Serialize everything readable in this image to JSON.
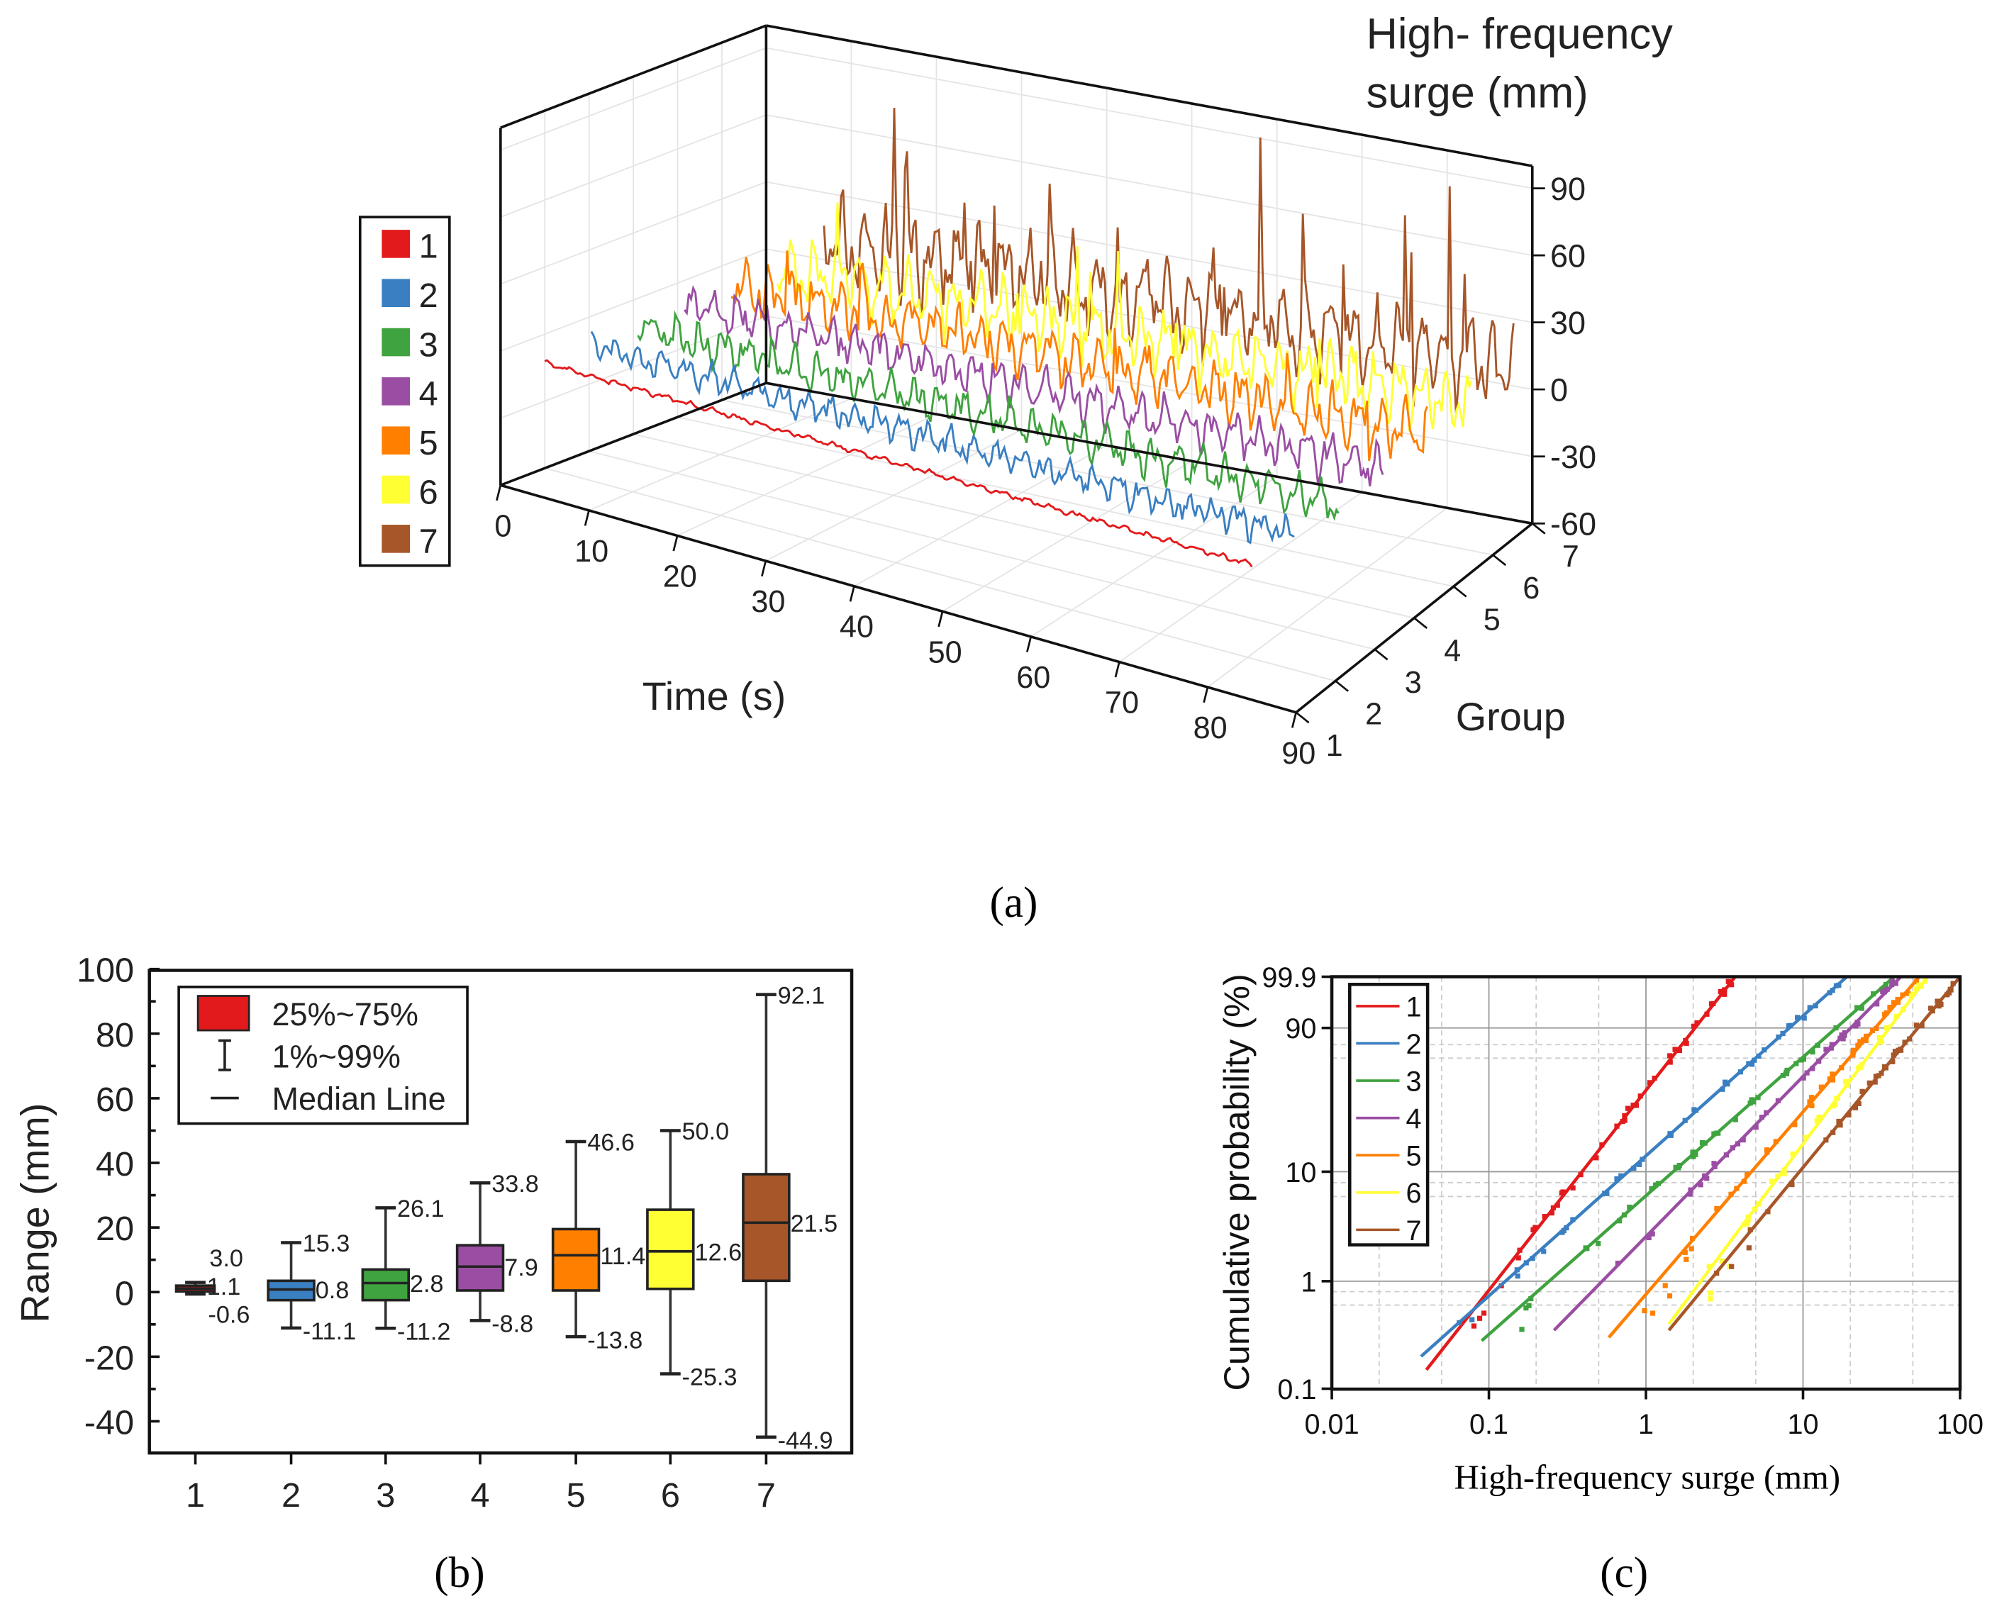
{
  "panel_labels": {
    "a": "(a)",
    "b": "(b)",
    "c": "(c)"
  },
  "colors": [
    "#e31a1c",
    "#3a7fc1",
    "#3fa33f",
    "#9a4ea3",
    "#ff7f00",
    "#ffff33",
    "#a65628"
  ],
  "chart_data": [
    {
      "type": "line",
      "subtype": "3d-waterfall",
      "title_line1": "High- frequency",
      "title_line2": "surge (mm)",
      "xlabel": "Time (s)",
      "ylabel": "Group",
      "x_ticks": [
        0,
        10,
        20,
        30,
        40,
        50,
        60,
        70,
        80,
        90
      ],
      "group_ticks": [
        1,
        2,
        3,
        4,
        5,
        6,
        7
      ],
      "z_ticks": [
        90,
        60,
        30,
        0,
        -30,
        -60
      ],
      "xlim": [
        0,
        90
      ],
      "zlim": [
        -60,
        90
      ],
      "legend": [
        "1",
        "2",
        "3",
        "4",
        "5",
        "6",
        "7"
      ],
      "legend_placement": "left"
    },
    {
      "type": "box",
      "ylabel": "Range (mm)",
      "ylim": [
        -50,
        100
      ],
      "y_ticks": [
        100,
        80,
        60,
        40,
        20,
        0,
        -20,
        -40
      ],
      "categories": [
        "1",
        "2",
        "3",
        "4",
        "5",
        "6",
        "7"
      ],
      "legend": [
        "25%~75%",
        "1%~99%",
        "Median Line"
      ],
      "legend_placement": "top-left",
      "boxes": [
        {
          "p1": -0.6,
          "q1": 0.2,
          "median": 1.1,
          "q3": 2.0,
          "p99": 3.0,
          "labels": [
            "3.0",
            "1.1",
            "-0.6"
          ]
        },
        {
          "p1": -11.1,
          "q1": -2.5,
          "median": 0.8,
          "q3": 3.5,
          "p99": 15.3,
          "labels": [
            "15.3",
            "0.8",
            "-11.1"
          ]
        },
        {
          "p1": -11.2,
          "q1": -2.5,
          "median": 2.8,
          "q3": 7.0,
          "p99": 26.1,
          "labels": [
            "26.1",
            "2.8",
            "-11.2"
          ]
        },
        {
          "p1": -8.8,
          "q1": 0.5,
          "median": 7.9,
          "q3": 14.5,
          "p99": 33.8,
          "labels": [
            "33.8",
            "7.9",
            "-8.8"
          ]
        },
        {
          "p1": -13.8,
          "q1": 0.5,
          "median": 11.4,
          "q3": 19.5,
          "p99": 46.6,
          "labels": [
            "46.6",
            "11.4",
            "-13.8"
          ]
        },
        {
          "p1": -25.3,
          "q1": 1.0,
          "median": 12.6,
          "q3": 25.5,
          "p99": 50.0,
          "labels": [
            "50.0",
            "12.6",
            "-25.3"
          ]
        },
        {
          "p1": -44.9,
          "q1": 3.5,
          "median": 21.5,
          "q3": 36.5,
          "p99": 92.1,
          "labels": [
            "92.1",
            "21.5",
            "-44.9"
          ]
        }
      ]
    },
    {
      "type": "scatter",
      "subtype": "weibull-probability-plot",
      "xlabel": "High-frequency surge (mm)",
      "ylabel": "Cumulative probability (%)",
      "xscale": "log",
      "xlim": [
        0.01,
        100
      ],
      "ylim": [
        0.1,
        99.9
      ],
      "x_ticks": [
        "0.01",
        "0.1",
        "1",
        "10",
        "100"
      ],
      "y_ticks": [
        "99.9",
        "90",
        "10",
        "1",
        "0.1"
      ],
      "legend": [
        "1",
        "2",
        "3",
        "4",
        "5",
        "6",
        "7"
      ],
      "legend_placement": "top-left",
      "fit_lines": [
        {
          "x": [
            0.04,
            3.7
          ],
          "p": [
            0.15,
            99.9
          ]
        },
        {
          "x": [
            0.037,
            19
          ],
          "p": [
            0.2,
            99.9
          ]
        },
        {
          "x": [
            0.09,
            38
          ],
          "p": [
            0.28,
            99.9
          ]
        },
        {
          "x": [
            0.26,
            42
          ],
          "p": [
            0.35,
            99.9
          ]
        },
        {
          "x": [
            0.58,
            55
          ],
          "p": [
            0.3,
            99.9
          ]
        },
        {
          "x": [
            1.4,
            62
          ],
          "p": [
            0.4,
            99.9
          ]
        },
        {
          "x": [
            1.4,
            100
          ],
          "p": [
            0.35,
            99.9
          ]
        }
      ]
    }
  ]
}
